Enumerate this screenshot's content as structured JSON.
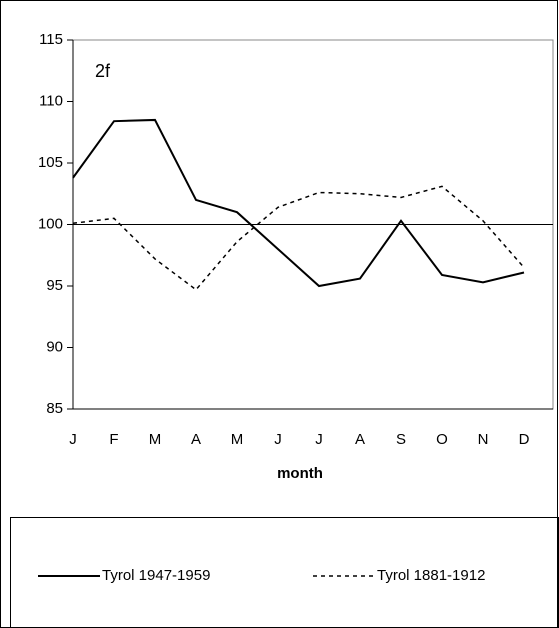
{
  "chart_data": {
    "type": "line",
    "annotation": "2f",
    "x_label": "month",
    "categories": [
      "J",
      "F",
      "M",
      "A",
      "M",
      "J",
      "J",
      "A",
      "S",
      "O",
      "N",
      "D"
    ],
    "series": [
      {
        "name": "Tyrol 1947-1959",
        "color": "#000000",
        "dash": "solid",
        "values": [
          103.8,
          108.4,
          108.5,
          102.0,
          101.0,
          98.0,
          95.0,
          95.6,
          100.3,
          95.9,
          95.3,
          96.1
        ]
      },
      {
        "name": "Tyrol 1881-1912",
        "color": "#000000",
        "dash": "dashed",
        "values": [
          100.1,
          100.5,
          97.2,
          94.7,
          98.6,
          101.4,
          102.6,
          102.5,
          102.2,
          103.1,
          100.3,
          96.5
        ]
      }
    ],
    "reference_line": 100,
    "ylim": [
      85,
      115
    ],
    "yticks": [
      85,
      90,
      95,
      100,
      105,
      110,
      115
    ]
  }
}
